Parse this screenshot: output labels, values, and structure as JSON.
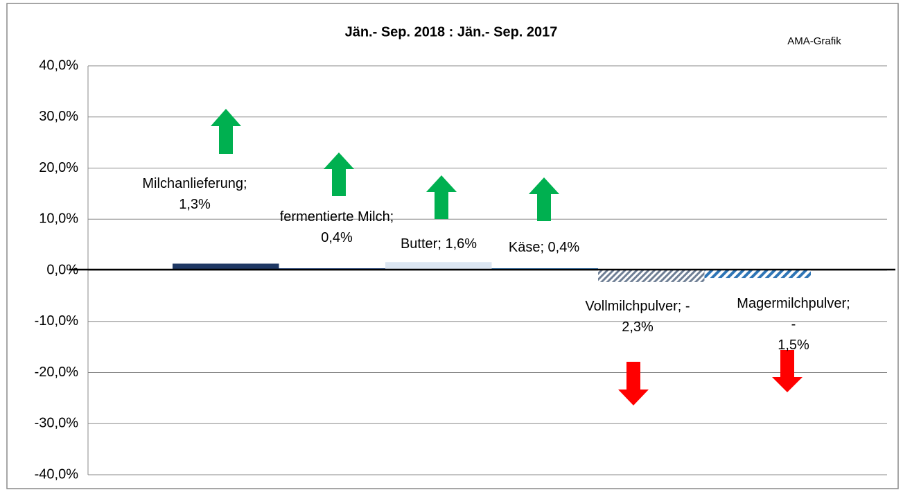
{
  "chart_data": {
    "type": "bar",
    "title": "Jän.- Sep. 2018 : Jän.- Sep. 2017",
    "annotations": [
      "AMA-Grafik"
    ],
    "values": [
      1.3,
      0.4,
      1.6,
      0.4,
      -2.3,
      -1.5
    ],
    "value_labels": [
      "Milchanlieferung;\n1,3%",
      "fermentierte Milch;\n0,4%",
      "Butter; 1,6%",
      "Käse; 0,4%",
      "Vollmilchpulver; -\n2,3%",
      "Magermilchpulver; -\n1,5%"
    ],
    "colors": [
      "#1f3864",
      "#2f5597",
      "#dce6f2",
      "#2e75b6",
      "pattern-gray",
      "pattern-blue"
    ],
    "ylim": [
      -40,
      40
    ],
    "yticks": [
      {
        "value": -40,
        "label": "-40,0%"
      },
      {
        "value": -30,
        "label": "-30,0%"
      },
      {
        "value": -20,
        "label": "-20,0%"
      },
      {
        "value": -10,
        "label": "-10,0%"
      },
      {
        "value": 0,
        "label": "0,0%"
      },
      {
        "value": 10,
        "label": "10,0%"
      },
      {
        "value": 20,
        "label": "20,0%"
      },
      {
        "value": 30,
        "label": "30,0%"
      },
      {
        "value": 40,
        "label": "40,0%"
      }
    ],
    "grid": true
  }
}
